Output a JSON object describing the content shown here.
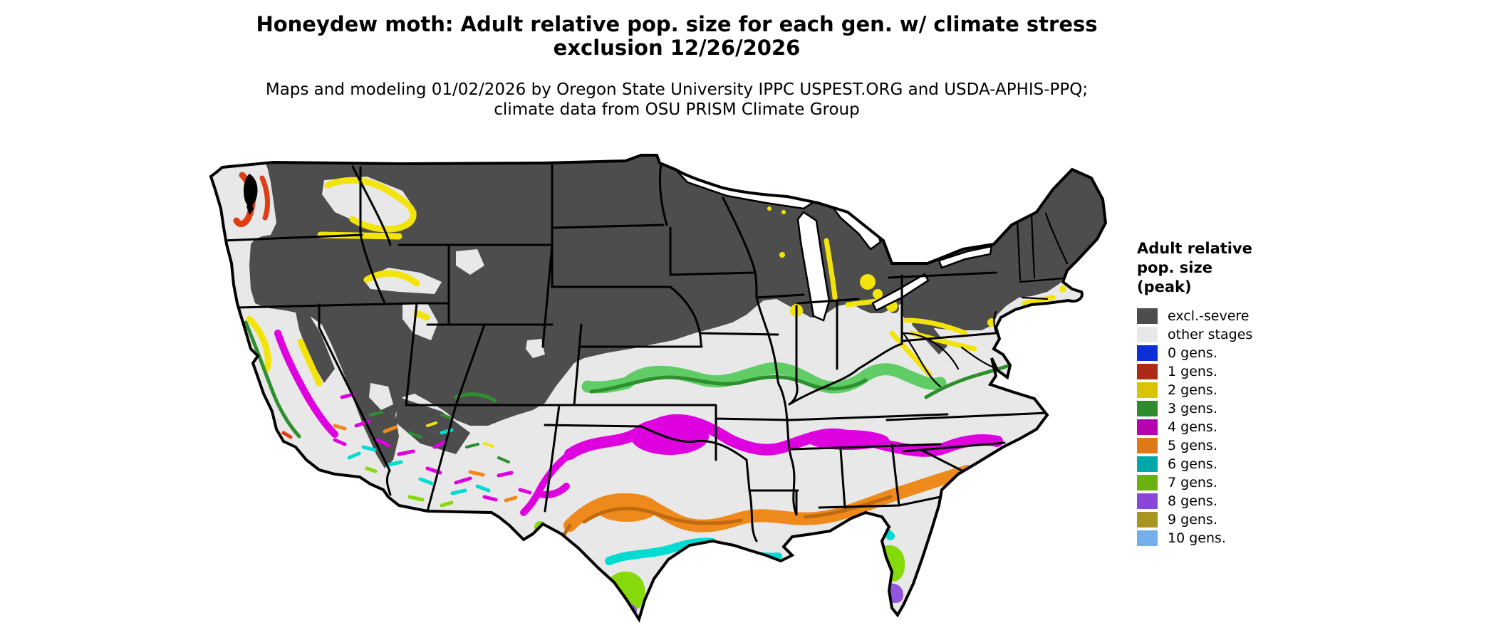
{
  "title": {
    "text": "Honeydew moth: Adult relative pop. size for each gen. w/ climate stress exclusion 12/26/2026"
  },
  "subtitle": {
    "text": "Maps and modeling 01/02/2026 by Oregon State University IPPC USPEST.ORG and USDA-APHIS-PPQ; climate data from OSU PRISM Climate Group"
  },
  "legend": {
    "title": "Adult relative pop. size (peak)",
    "items": [
      {
        "key": "excl",
        "label": "excl.-severe",
        "color": "#4D4D4D"
      },
      {
        "key": "other",
        "label": "other stages",
        "color": "#E8E8E8"
      },
      {
        "key": "gen0",
        "label": "0 gens.",
        "color": "#0C2FD6"
      },
      {
        "key": "gen1",
        "label": "1 gens.",
        "color": "#AD2B16"
      },
      {
        "key": "gen2",
        "label": "2 gens.",
        "color": "#D9C402"
      },
      {
        "key": "gen3",
        "label": "3 gens.",
        "color": "#2E8B2E"
      },
      {
        "key": "gen4",
        "label": "4 gens.",
        "color": "#B503AE"
      },
      {
        "key": "gen5",
        "label": "5 gens.",
        "color": "#DD7A16"
      },
      {
        "key": "gen6",
        "label": "6 gens.",
        "color": "#02A7A7"
      },
      {
        "key": "gen7",
        "label": "7 gens.",
        "color": "#6AB110"
      },
      {
        "key": "gen8",
        "label": "8 gens.",
        "color": "#8A46D8"
      },
      {
        "key": "gen9",
        "label": "9 gens.",
        "color": "#A8951F"
      },
      {
        "key": "gen10",
        "label": "10 gens.",
        "color": "#74AFEC"
      }
    ]
  },
  "map": {
    "extra_colors": {
      "outline": "#000000",
      "lake": "#FFFFFF",
      "water_body": "#000000",
      "gen1_map": "#DF3D14",
      "gen2_map": "#F2E40A",
      "gen3_light": "#5FCC66",
      "gen3_dark": "#2E8F2E",
      "gen4_map": "#DF00DF",
      "gen5_map": "#EE8A1C",
      "gen5_dark": "#C06A10",
      "gen6_map": "#00DCD2",
      "gen7_map": "#86DA0B",
      "gen8_map": "#9355E0",
      "gen9_map": "#AC9423"
    }
  }
}
